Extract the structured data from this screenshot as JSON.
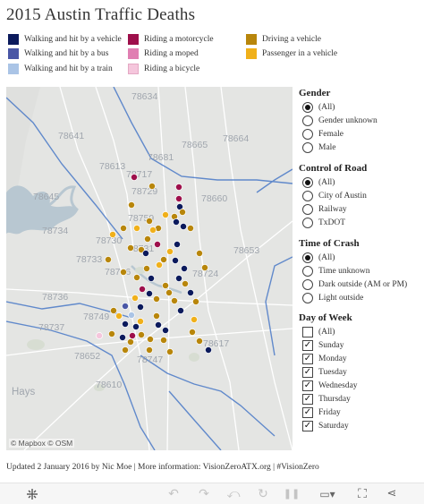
{
  "title": "2015 Austin Traffic Deaths",
  "legend": [
    {
      "label": "Walking and hit by a vehicle",
      "color": "#0b1a5c"
    },
    {
      "label": "Walking and hit by a bus",
      "color": "#4a57a6"
    },
    {
      "label": "Walking and hit by a train",
      "color": "#aac4e6"
    },
    {
      "label": "Riding a motorcycle",
      "color": "#9e0f4b"
    },
    {
      "label": "Riding a moped",
      "color": "#e07fb2"
    },
    {
      "label": "Riding a bicycle",
      "color": "#f5c6dc"
    },
    {
      "label": "Driving a vehicle",
      "color": "#b8860b"
    },
    {
      "label": "Passenger in a vehicle",
      "color": "#f0b01a"
    }
  ],
  "map": {
    "zip_labels": [
      "78634",
      "78641",
      "78665",
      "78613",
      "78681",
      "78664",
      "78717",
      "78729",
      "78660",
      "78645",
      "78759",
      "78734",
      "78730",
      "78731",
      "78653",
      "78733",
      "78746",
      "78724",
      "78736",
      "78749",
      "78737",
      "78652",
      "78617",
      "78747",
      "78610",
      "Hays"
    ],
    "attribution": "© Mapbox © OSM"
  },
  "filters": {
    "gender": {
      "title": "Gender",
      "options": [
        "(All)",
        "Gender unknown",
        "Female",
        "Male"
      ],
      "selected": "(All)"
    },
    "road": {
      "title": "Control of Road",
      "options": [
        "(All)",
        "City of Austin",
        "Railway",
        "TxDOT"
      ],
      "selected": "(All)"
    },
    "time": {
      "title": "Time of Crash",
      "options": [
        "(All)",
        "Time unknown",
        "Dark outside (AM or PM)",
        "Light outside"
      ],
      "selected": "(All)"
    },
    "day": {
      "title": "Day of Week",
      "options": [
        "(All)",
        "Sunday",
        "Monday",
        "Tuesday",
        "Wednesday",
        "Thursday",
        "Friday",
        "Saturday"
      ],
      "checked": [
        "Sunday",
        "Monday",
        "Tuesday",
        "Wednesday",
        "Thursday",
        "Friday",
        "Saturday"
      ]
    }
  },
  "footer": "Updated 2 January 2016 by Nic Moe | More information: VisionZeroATX.org | #VisionZero",
  "toolbar": {
    "icons": [
      "tableau-logo-icon",
      "undo-icon",
      "redo-icon",
      "revert-icon",
      "refresh-icon",
      "pause-icon",
      "comment-icon",
      "share-icon",
      "fullscreen-icon",
      "share-network-icon"
    ]
  }
}
